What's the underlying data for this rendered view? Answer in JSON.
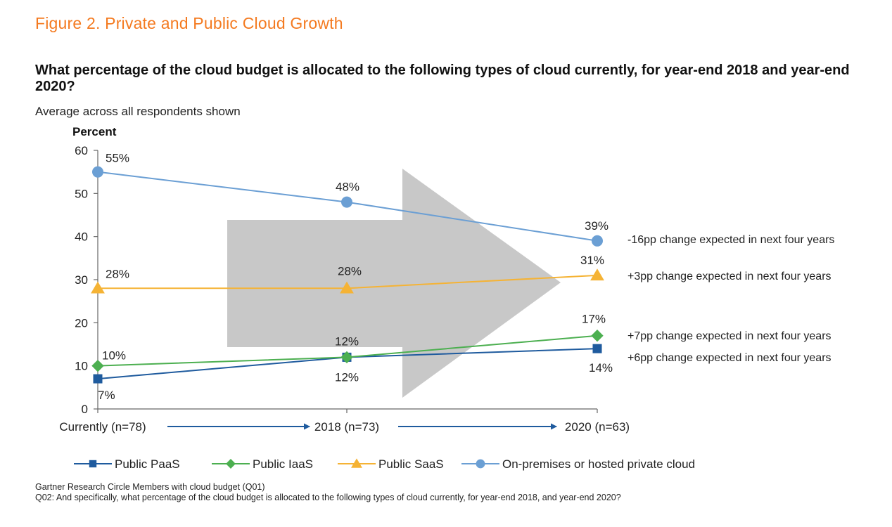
{
  "figure_title": "Figure 2. Private and Public Cloud Growth",
  "question": "What percentage of the cloud budget is allocated to the following types of cloud currently, for year-end 2018 and year-end 2020?",
  "subtitle": "Average across all respondents shown",
  "footer": {
    "line1": "Gartner Research Circle Members with cloud budget (Q01)",
    "line2": "Q02: And specifically, what percentage of the cloud budget is allocated to the following types of cloud currently, for year-end 2018, and year-end 2020?"
  },
  "chart_data": {
    "type": "line",
    "ylabel": "Percent",
    "ylim": [
      0,
      60
    ],
    "yticks": [
      0,
      10,
      20,
      30,
      40,
      50,
      60
    ],
    "categories": [
      "Currently (n=78)",
      "2018 (n=73)",
      "2020 (n=63)"
    ],
    "legend_position": "bottom",
    "grid": false,
    "series": [
      {
        "name": "Public PaaS",
        "marker": "square",
        "color": "#1f5b9e",
        "values": [
          7,
          12,
          14
        ],
        "labels": [
          "7%",
          "12%",
          "14%"
        ]
      },
      {
        "name": "Public IaaS",
        "marker": "diamond",
        "color": "#4caf50",
        "values": [
          10,
          12,
          17
        ],
        "labels": [
          "10%",
          "12%",
          "17%"
        ]
      },
      {
        "name": "Public SaaS",
        "marker": "triangle",
        "color": "#f5b335",
        "values": [
          28,
          28,
          31
        ],
        "labels": [
          "28%",
          "28%",
          "31%"
        ]
      },
      {
        "name": "On-premises or hosted private cloud",
        "marker": "circle",
        "color": "#6b9fd4",
        "values": [
          55,
          48,
          39
        ],
        "labels": [
          "55%",
          "48%",
          "39%"
        ]
      }
    ],
    "annotations": [
      {
        "series": "On-premises or hosted private cloud",
        "text": "-16pp change expected in next four years"
      },
      {
        "series": "Public SaaS",
        "text": "+3pp change expected in next four years"
      },
      {
        "series": "Public IaaS",
        "text": "+7pp change expected in next four years"
      },
      {
        "series": "Public PaaS",
        "text": "+6pp change expected in next four years"
      }
    ]
  }
}
